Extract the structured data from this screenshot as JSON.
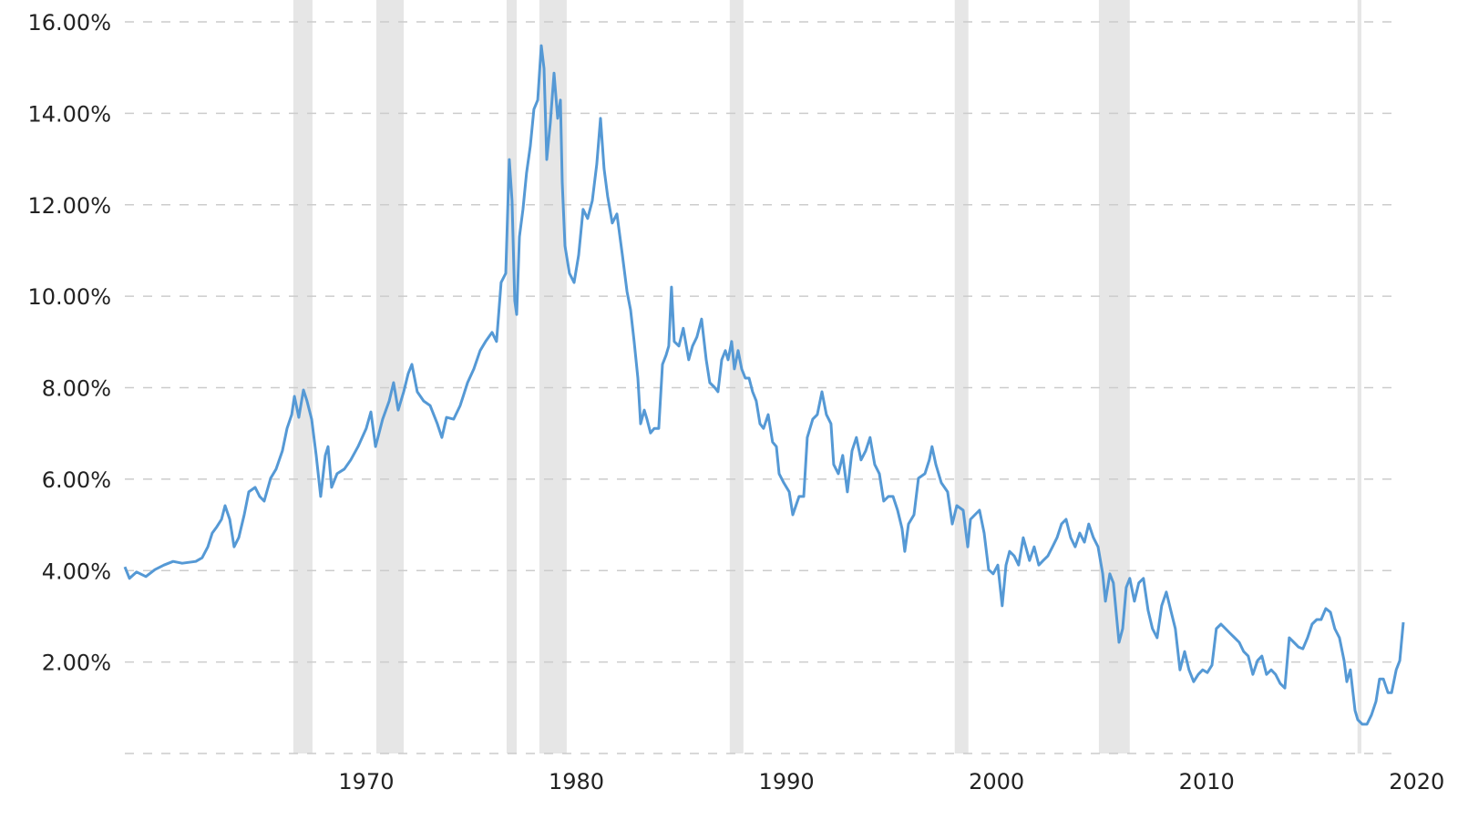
{
  "chart_data": {
    "type": "line",
    "title": "",
    "xlabel": "",
    "ylabel": "",
    "xlim": [
      1960.2,
      2021.05
    ],
    "ylim": [
      0,
      16
    ],
    "grid": "horizontal dashed",
    "legend": "none",
    "y_ticks": [
      0,
      2,
      4,
      6,
      8,
      10,
      12,
      14,
      16
    ],
    "y_tick_labels": [
      "",
      "2.00%",
      "4.00%",
      "6.00%",
      "8.00%",
      "10.00%",
      "12.00%",
      "14.00%",
      "16.00%"
    ],
    "x_ticks": [
      1970,
      1980,
      1990,
      2000,
      2010,
      2020
    ],
    "x_tick_labels": [
      "1970",
      "1980",
      "1990",
      "2000",
      "2010",
      "2020"
    ],
    "colors": {
      "line": "#5599d5",
      "shaded_band": "#e6e6e6",
      "grid": "#cccccc"
    },
    "shaded_bands": [
      [
        1968.22,
        1969.13
      ],
      [
        1972.17,
        1973.47
      ],
      [
        1978.37,
        1978.85
      ],
      [
        1979.93,
        1981.23
      ],
      [
        1988.99,
        1989.64
      ],
      [
        1999.7,
        2000.35
      ],
      [
        2006.56,
        2008.03
      ],
      [
        2018.87,
        2019.05
      ]
    ],
    "series": [
      {
        "x": [
          1960.2,
          1960.42,
          1960.76,
          1961.2,
          1961.63,
          1962.06,
          1962.5,
          1962.93,
          1963.58,
          1963.88,
          1964.15,
          1964.36,
          1964.58,
          1964.8,
          1964.97,
          1965.19,
          1965.4,
          1965.62,
          1965.88,
          1966.1,
          1966.4,
          1966.62,
          1966.83,
          1967.14,
          1967.4,
          1967.7,
          1967.92,
          1968.14,
          1968.27,
          1968.48,
          1968.7,
          1968.87,
          1969.09,
          1969.31,
          1969.52,
          1969.74,
          1969.87,
          1970.04,
          1970.3,
          1970.65,
          1970.95,
          1971.3,
          1971.69,
          1971.91,
          1972.13,
          1972.47,
          1972.78,
          1972.99,
          1973.21,
          1973.47,
          1973.69,
          1973.86,
          1974.12,
          1974.42,
          1974.73,
          1975.07,
          1975.29,
          1975.51,
          1975.85,
          1976.16,
          1976.51,
          1976.81,
          1977.11,
          1977.37,
          1977.68,
          1977.89,
          1978.11,
          1978.33,
          1978.5,
          1978.63,
          1978.76,
          1978.85,
          1978.98,
          1979.15,
          1979.32,
          1979.5,
          1979.67,
          1979.85,
          1980.02,
          1980.15,
          1980.28,
          1980.45,
          1980.63,
          1980.8,
          1980.93,
          1981.02,
          1981.15,
          1981.36,
          1981.58,
          1981.8,
          1982.01,
          1982.23,
          1982.45,
          1982.66,
          1982.84,
          1983.01,
          1983.18,
          1983.4,
          1983.62,
          1983.88,
          1984.1,
          1984.27,
          1984.44,
          1984.62,
          1984.75,
          1984.92,
          1985.05,
          1985.22,
          1985.4,
          1985.61,
          1985.79,
          1985.96,
          1986.09,
          1986.22,
          1986.35,
          1986.57,
          1986.78,
          1987.04,
          1987.22,
          1987.43,
          1987.65,
          1987.87,
          1988.04,
          1988.26,
          1988.43,
          1988.61,
          1988.78,
          1988.91,
          1989.08,
          1989.21,
          1989.39,
          1989.56,
          1989.73,
          1989.91,
          1990.08,
          1990.25,
          1990.43,
          1990.6,
          1990.82,
          1991.03,
          1991.21,
          1991.34,
          1991.56,
          1991.82,
          1991.99,
          1992.29,
          1992.51,
          1992.68,
          1992.94,
          1993.16,
          1993.38,
          1993.59,
          1993.81,
          1993.94,
          1994.16,
          1994.37,
          1994.59,
          1994.81,
          1995.02,
          1995.24,
          1995.46,
          1995.67,
          1995.89,
          1996.11,
          1996.32,
          1996.54,
          1996.76,
          1996.98,
          1997.19,
          1997.32,
          1997.5,
          1997.76,
          1997.97,
          1998.28,
          1998.49,
          1998.62,
          1998.8,
          1999.06,
          1999.36,
          1999.58,
          1999.8,
          2000.1,
          2000.32,
          2000.45,
          2000.66,
          2000.88,
          2001.1,
          2001.31,
          2001.53,
          2001.75,
          2001.96,
          2002.14,
          2002.31,
          2002.53,
          2002.74,
          2002.96,
          2003.26,
          2003.48,
          2003.7,
          2003.91,
          2004.13,
          2004.35,
          2004.57,
          2004.78,
          2005.0,
          2005.22,
          2005.43,
          2005.65,
          2005.87,
          2006.08,
          2006.3,
          2006.52,
          2006.74,
          2006.87,
          2007.08,
          2007.25,
          2007.52,
          2007.69,
          2007.86,
          2008.03,
          2008.25,
          2008.46,
          2008.68,
          2008.9,
          2009.11,
          2009.33,
          2009.55,
          2009.77,
          2009.98,
          2010.2,
          2010.42,
          2010.64,
          2010.85,
          2011.07,
          2011.29,
          2011.5,
          2011.72,
          2011.94,
          2012.15,
          2012.37,
          2012.59,
          2012.8,
          2013.02,
          2013.24,
          2013.45,
          2013.67,
          2013.89,
          2014.11,
          2014.32,
          2014.54,
          2014.76,
          2014.97,
          2015.19,
          2015.41,
          2015.62,
          2015.84,
          2016.06,
          2016.27,
          2016.49,
          2016.71,
          2016.93,
          2017.14,
          2017.36,
          2017.58,
          2017.79,
          2018.01,
          2018.23,
          2018.36,
          2018.53,
          2018.75,
          2018.88,
          2019.1,
          2019.32,
          2019.53,
          2019.75,
          2019.92,
          2020.1,
          2020.32,
          2020.49,
          2020.71,
          2020.88,
          2021.05
        ],
        "y": [
          4.08,
          3.83,
          3.97,
          3.87,
          4.02,
          4.12,
          4.2,
          4.16,
          4.2,
          4.28,
          4.52,
          4.82,
          4.96,
          5.12,
          5.42,
          5.12,
          4.52,
          4.72,
          5.22,
          5.72,
          5.82,
          5.62,
          5.52,
          6.02,
          6.22,
          6.62,
          7.11,
          7.41,
          7.81,
          7.35,
          7.95,
          7.71,
          7.31,
          6.52,
          5.62,
          6.52,
          6.71,
          5.82,
          6.12,
          6.22,
          6.42,
          6.71,
          7.11,
          7.47,
          6.71,
          7.31,
          7.71,
          8.11,
          7.51,
          7.91,
          8.31,
          8.51,
          7.91,
          7.71,
          7.61,
          7.21,
          6.91,
          7.35,
          7.31,
          7.61,
          8.11,
          8.41,
          8.81,
          9.01,
          9.21,
          9.01,
          10.3,
          10.5,
          12.99,
          12.09,
          9.9,
          9.6,
          11.3,
          11.9,
          12.69,
          13.29,
          14.09,
          14.29,
          15.48,
          14.98,
          12.99,
          13.79,
          14.88,
          13.89,
          14.29,
          12.49,
          11.1,
          10.5,
          10.3,
          10.9,
          11.9,
          11.7,
          12.09,
          12.89,
          13.89,
          12.79,
          12.19,
          11.6,
          11.8,
          10.9,
          10.1,
          9.7,
          9.01,
          8.21,
          7.21,
          7.51,
          7.31,
          7.01,
          7.11,
          7.11,
          8.51,
          8.71,
          8.91,
          10.2,
          9.01,
          8.91,
          9.3,
          8.61,
          8.91,
          9.11,
          9.5,
          8.61,
          8.11,
          8.01,
          7.91,
          8.61,
          8.81,
          8.61,
          9.01,
          8.41,
          8.81,
          8.41,
          8.21,
          8.21,
          7.91,
          7.71,
          7.21,
          7.11,
          7.41,
          6.81,
          6.71,
          6.12,
          5.92,
          5.72,
          5.22,
          5.62,
          5.62,
          6.91,
          7.31,
          7.41,
          7.91,
          7.41,
          7.21,
          6.32,
          6.12,
          6.52,
          5.72,
          6.62,
          6.91,
          6.42,
          6.62,
          6.91,
          6.32,
          6.12,
          5.52,
          5.62,
          5.62,
          5.32,
          4.92,
          4.42,
          5.02,
          5.22,
          6.02,
          6.12,
          6.42,
          6.71,
          6.32,
          5.92,
          5.72,
          5.02,
          5.42,
          5.32,
          4.52,
          5.12,
          5.22,
          5.32,
          4.82,
          4.02,
          3.93,
          4.12,
          3.23,
          4.12,
          4.42,
          4.32,
          4.12,
          4.72,
          4.22,
          4.52,
          4.12,
          4.22,
          4.32,
          4.52,
          4.72,
          5.02,
          5.12,
          4.72,
          4.52,
          4.82,
          4.62,
          5.02,
          4.72,
          4.52,
          3.93,
          3.33,
          3.93,
          3.73,
          2.43,
          2.73,
          3.63,
          3.83,
          3.33,
          3.73,
          3.83,
          3.13,
          2.73,
          2.53,
          3.23,
          3.53,
          3.13,
          2.73,
          1.83,
          2.23,
          1.83,
          1.57,
          1.73,
          1.83,
          1.77,
          1.93,
          2.73,
          2.83,
          2.73,
          2.63,
          2.53,
          2.43,
          2.23,
          2.13,
          1.73,
          2.03,
          2.13,
          1.73,
          1.83,
          1.73,
          1.53,
          1.43,
          2.53,
          2.43,
          2.33,
          2.29,
          2.53,
          2.83,
          2.93,
          2.93,
          3.17,
          3.09,
          2.73,
          2.53,
          2.03,
          1.57,
          1.83,
          0.94,
          0.74,
          0.64,
          0.64,
          0.84,
          1.14,
          1.63,
          1.63,
          1.33,
          1.33,
          1.83,
          2.03,
          2.87
        ]
      }
    ]
  }
}
